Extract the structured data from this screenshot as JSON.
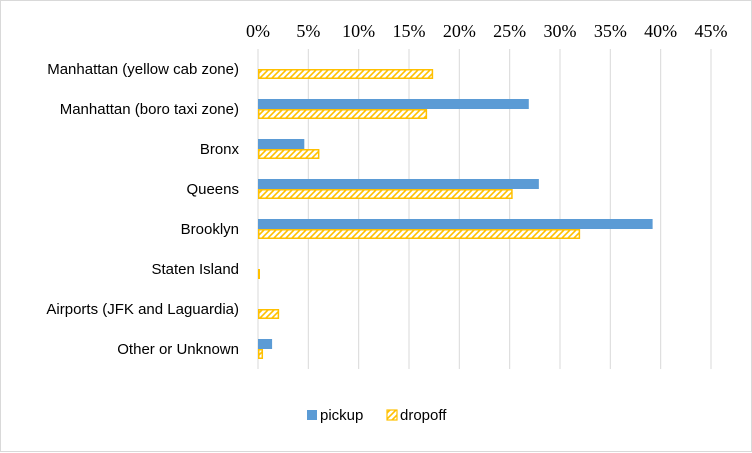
{
  "chart_data": {
    "type": "bar",
    "orientation": "horizontal",
    "title": "",
    "xlabel": "",
    "ylabel": "",
    "categories": [
      "Manhattan (yellow cab zone)",
      "Manhattan (boro taxi zone)",
      "Bronx",
      "Queens",
      "Brooklyn",
      "Staten Island",
      "Airports (JFK and Laguardia)",
      "Other or Unknown"
    ],
    "series": [
      {
        "name": "pickup",
        "color": "#5b9bd5",
        "pattern": "solid",
        "values": [
          0,
          26.9,
          4.6,
          27.9,
          39.2,
          0,
          0,
          1.4
        ]
      },
      {
        "name": "dropoff",
        "color": "#ffc000",
        "pattern": "diagonal-hatch",
        "values": [
          17.4,
          16.8,
          6.1,
          25.3,
          32.0,
          0.1,
          2.1,
          0.5
        ]
      }
    ],
    "xlim": [
      0,
      45
    ],
    "x_ticks": [
      "0%",
      "5%",
      "10%",
      "15%",
      "20%",
      "25%",
      "30%",
      "35%",
      "40%",
      "45%"
    ],
    "x_axis_position": "top",
    "grid": true,
    "legend_position": "bottom"
  }
}
